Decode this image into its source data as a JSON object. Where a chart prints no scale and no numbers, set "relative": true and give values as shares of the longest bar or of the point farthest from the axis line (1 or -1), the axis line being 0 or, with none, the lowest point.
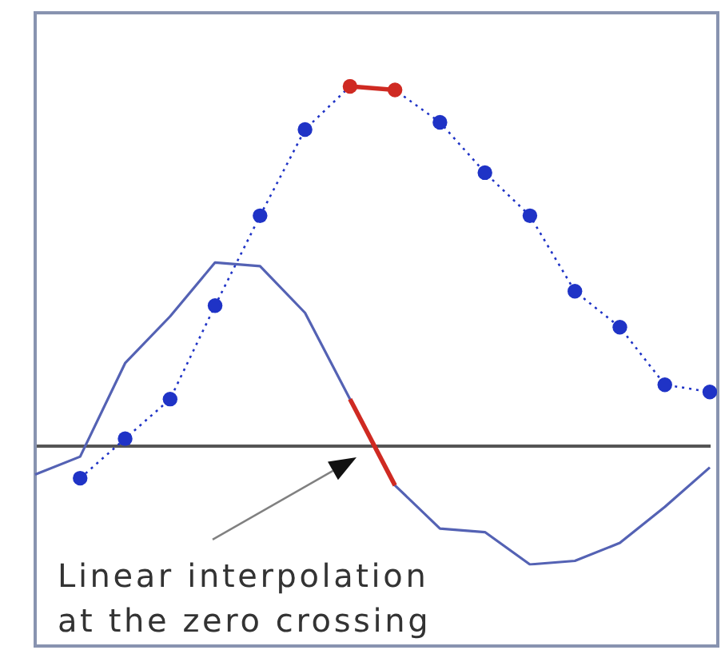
{
  "chart_data": {
    "type": "line",
    "relative": true,
    "categories": [
      null,
      null,
      null,
      null,
      null,
      null,
      null,
      null,
      null,
      null,
      null,
      null,
      null,
      null,
      null,
      null
    ],
    "series": [
      {
        "color": "#1f33c6",
        "marker": "circle",
        "line_style": "dotted",
        "values": [
          null,
          -0.09,
          0.02,
          0.13,
          0.39,
          0.64,
          0.88,
          1.0,
          0.99,
          0.9,
          0.76,
          0.64,
          0.43,
          0.33,
          0.17,
          0.15
        ],
        "colors": [
          null,
          "#1f33c6",
          "#1f33c6",
          "#1f33c6",
          "#1f33c6",
          "#1f33c6",
          "#1f33c6",
          "#cf2a22",
          "#cf2a22",
          "#1f33c6",
          "#1f33c6",
          "#1f33c6",
          "#1f33c6",
          "#1f33c6",
          "#1f33c6",
          "#1f33c6"
        ]
      },
      {
        "color": "#5462b4",
        "marker": "none",
        "line_style": "solid",
        "values": [
          -0.08,
          -0.03,
          0.23,
          0.36,
          0.51,
          0.5,
          0.37,
          0.13,
          -0.11,
          -0.23,
          -0.24,
          -0.33,
          -0.32,
          -0.27,
          -0.17,
          -0.06
        ]
      },
      {
        "color": "#cf2a22",
        "line_style": "solid",
        "values": [
          null,
          null,
          null,
          null,
          null,
          null,
          null,
          1.0,
          0.99,
          null,
          null,
          null,
          null,
          null,
          null,
          null
        ]
      },
      {
        "color": "#cf2a22",
        "marker": "none",
        "line_style": "solid",
        "values": [
          null,
          null,
          null,
          null,
          null,
          null,
          null,
          0.13,
          -0.11,
          null,
          null,
          null,
          null,
          null,
          null,
          null
        ]
      }
    ],
    "annotations": [
      "Linear interpolation at the zero crossing"
    ]
  }
}
